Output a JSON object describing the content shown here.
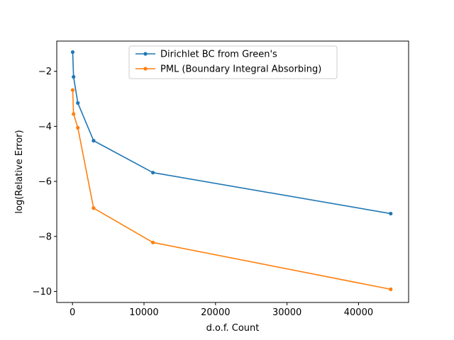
{
  "chart_data": {
    "type": "line",
    "title": "",
    "xlabel": "d.o.f. Count",
    "ylabel": "log(Relative Error)",
    "xlim": [
      -2200,
      47000
    ],
    "ylim": [
      -10.4,
      -0.9
    ],
    "xticks": [
      0,
      10000,
      20000,
      30000,
      40000
    ],
    "xtick_labels": [
      "0",
      "10000",
      "20000",
      "30000",
      "40000"
    ],
    "yticks": [
      -2,
      -4,
      -6,
      -8,
      -10
    ],
    "ytick_labels": [
      "−2",
      "−4",
      "−6",
      "−8",
      "−10"
    ],
    "grid": false,
    "legend_position": "top-center",
    "series": [
      {
        "name": "Dirichlet BC from Green's",
        "color": "#1f77b4",
        "x": [
          30,
          150,
          750,
          2950,
          11250,
          44500
        ],
        "y": [
          -1.3,
          -2.2,
          -3.15,
          -4.52,
          -5.68,
          -7.17
        ]
      },
      {
        "name": "PML (Boundary Integral Absorbing)",
        "color": "#ff7f0e",
        "x": [
          30,
          150,
          750,
          2950,
          11250,
          44500
        ],
        "y": [
          -2.68,
          -3.55,
          -4.05,
          -6.97,
          -8.22,
          -9.92
        ]
      }
    ]
  }
}
